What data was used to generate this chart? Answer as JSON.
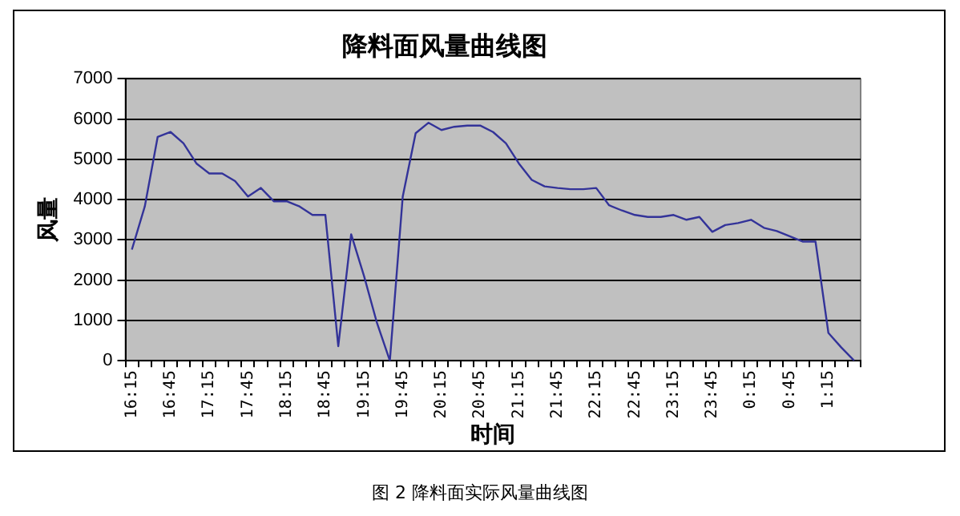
{
  "chart_data": {
    "type": "line",
    "title": "降料面风量曲线图",
    "xlabel": "时间",
    "ylabel": "风量",
    "annotations": [
      "图 2  降料面实际风量曲线图"
    ],
    "categories": [
      "16:15",
      null,
      null,
      "16:45",
      null,
      null,
      "17:15",
      null,
      null,
      "17:45",
      null,
      null,
      "18:15",
      null,
      null,
      "18:45",
      null,
      null,
      "19:15",
      null,
      null,
      "19:45",
      null,
      null,
      "20:15",
      null,
      null,
      "20:45",
      null,
      null,
      "21:15",
      null,
      null,
      "21:45",
      null,
      null,
      "22:15",
      null,
      null,
      "22:45",
      null,
      null,
      "23:15",
      null,
      null,
      "23:45",
      null,
      null,
      "0:15",
      null,
      null,
      "0:45",
      null,
      null,
      "1:15",
      null,
      null
    ],
    "series": [
      {
        "color": "#333399",
        "values": [
          2760,
          3830,
          5560,
          5680,
          5400,
          4900,
          4650,
          4650,
          4460,
          4080,
          4290,
          3960,
          3960,
          3830,
          3620,
          3620,
          360,
          3140,
          2100,
          940,
          0,
          4080,
          5650,
          5910,
          5730,
          5810,
          5840,
          5840,
          5680,
          5400,
          4900,
          4490,
          4330,
          4290,
          4260,
          4260,
          4290,
          3860,
          3730,
          3620,
          3570,
          3570,
          3620,
          3500,
          3570,
          3200,
          3370,
          3420,
          3500,
          3300,
          3220,
          3090,
          2960,
          2960,
          690,
          330,
          0
        ]
      }
    ],
    "ylim": [
      0,
      7000
    ],
    "yticks": [
      0,
      1000,
      2000,
      3000,
      4000,
      5000,
      6000,
      7000
    ],
    "grid": "y",
    "legend": false,
    "marker": "none",
    "line_style": "solid"
  }
}
